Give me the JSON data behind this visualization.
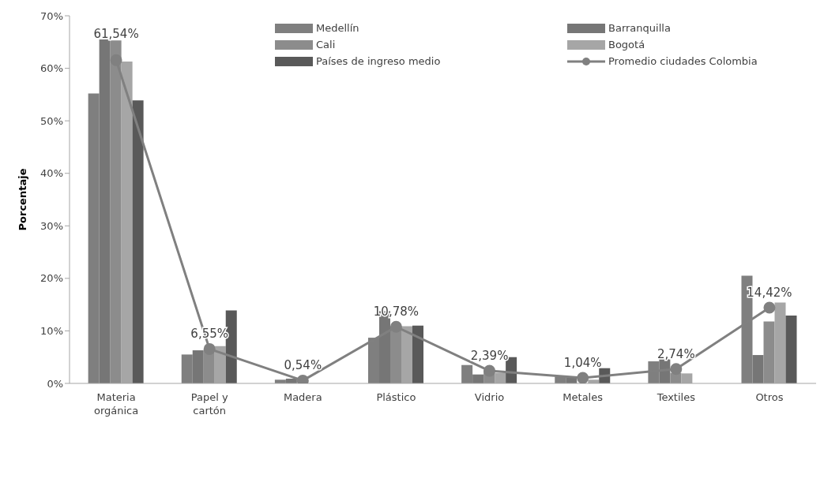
{
  "chart_data": {
    "type": "bar",
    "ylabel": "Porcentaje",
    "categories": [
      "Materia orgánica",
      "Papel y cartón",
      "Madera",
      "Plástico",
      "Vidrio",
      "Metales",
      "Textiles",
      "Otros"
    ],
    "series": [
      {
        "name": "Medellín",
        "color": "#7f7f7f",
        "values": [
          55.2,
          5.5,
          0.7,
          8.7,
          3.5,
          1.3,
          4.2,
          20.5
        ]
      },
      {
        "name": "Barranquilla",
        "color": "#767676",
        "values": [
          65.5,
          6.3,
          0.9,
          13.8,
          1.7,
          1.3,
          4.6,
          5.4
        ]
      },
      {
        "name": "Cali",
        "color": "#8c8c8c",
        "values": [
          65.3,
          6.5,
          null,
          10.8,
          2.5,
          null,
          2.0,
          11.8
        ]
      },
      {
        "name": "Bogotá",
        "color": "#a6a6a6",
        "values": [
          61.3,
          7.1,
          null,
          10.9,
          2.0,
          0.7,
          1.9,
          15.4
        ]
      },
      {
        "name": "Países de ingreso medio",
        "color": "#595959",
        "values": [
          53.9,
          13.9,
          null,
          11.0,
          5.0,
          2.9,
          null,
          12.9
        ]
      },
      {
        "name": "Promedio ciudades Colombia",
        "type": "line",
        "color": "#808080",
        "values": [
          61.54,
          6.55,
          0.54,
          10.78,
          2.39,
          1.04,
          2.74,
          14.42
        ],
        "value_labels": [
          "61,54%",
          "6,55%",
          "0,54%",
          "10,78%",
          "2,39%",
          "1,04%",
          "2,74%",
          "14,42%"
        ]
      }
    ],
    "ylim": [
      0,
      70
    ],
    "yticks": [
      {
        "value": 0,
        "label": "0%"
      },
      {
        "value": 10,
        "label": "10%"
      },
      {
        "value": 20,
        "label": "20%"
      },
      {
        "value": 30,
        "label": "30%"
      },
      {
        "value": 40,
        "label": "40%"
      },
      {
        "value": 50,
        "label": "50%"
      },
      {
        "value": 60,
        "label": "60%"
      },
      {
        "value": 70,
        "label": "70%"
      }
    ],
    "grid": false,
    "legend": "top right",
    "marker": "circle",
    "line_style": "solid"
  }
}
